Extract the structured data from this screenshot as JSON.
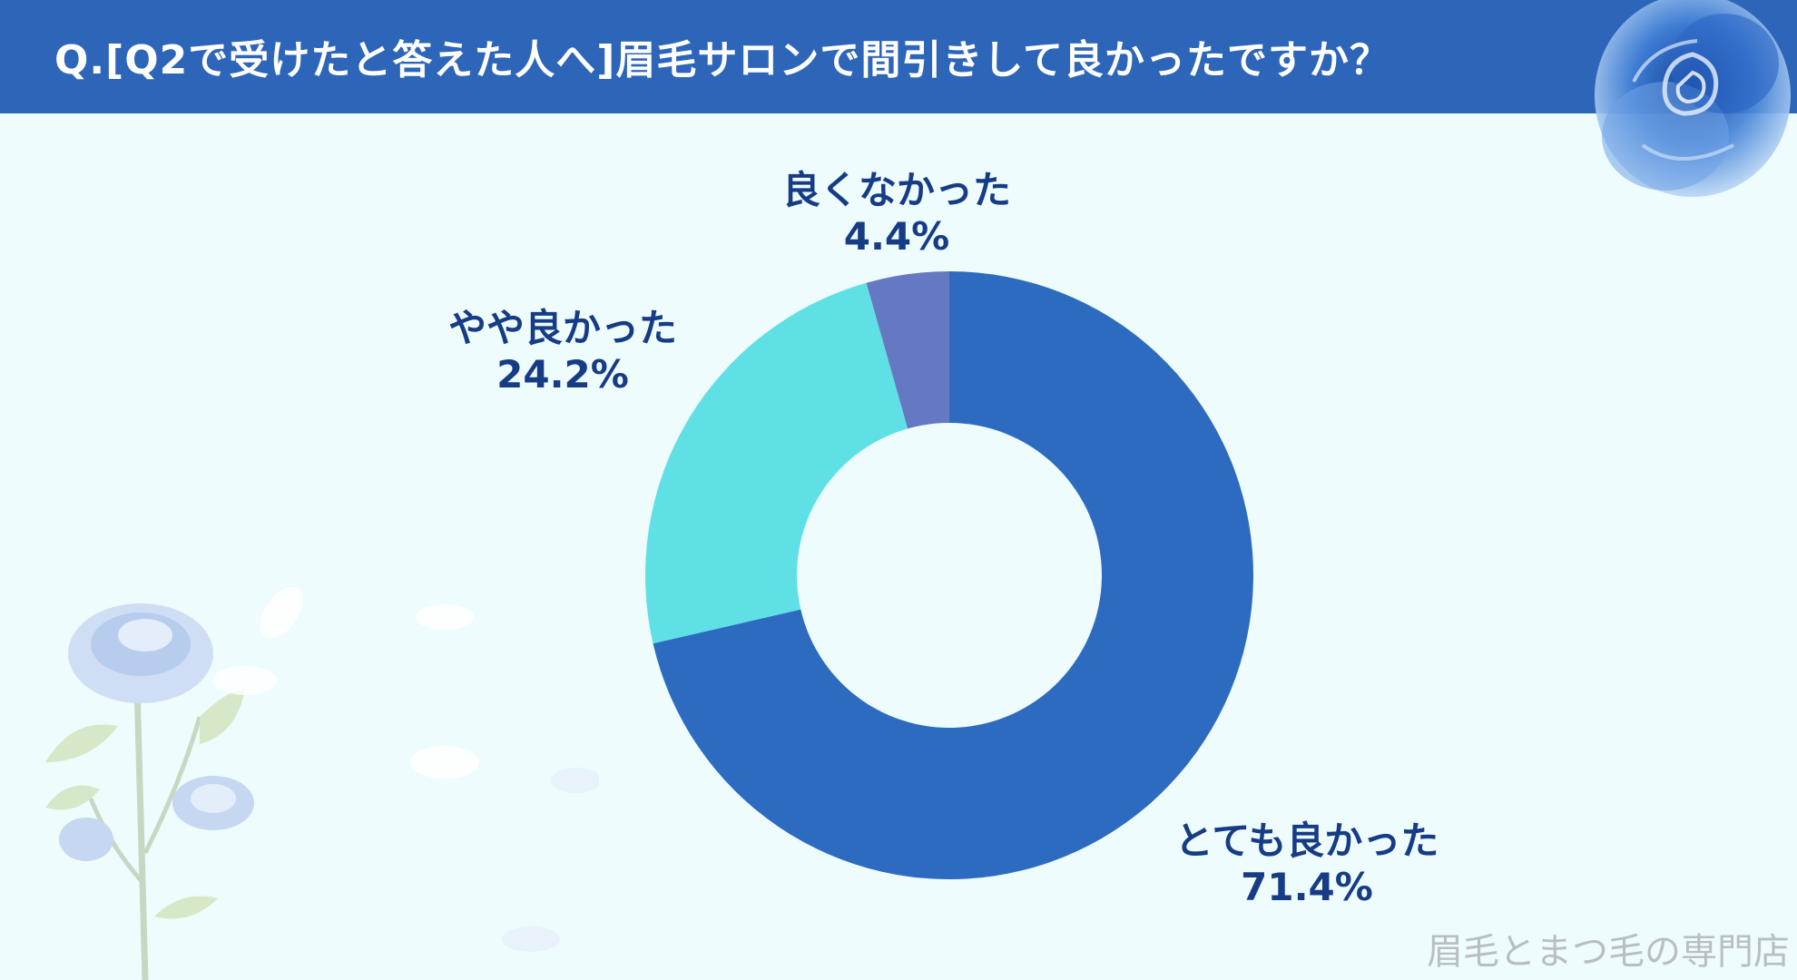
{
  "header": {
    "title": "Q.[Q2で受けたと答えた人へ]眉毛サロンで間引きして良かったですか？"
  },
  "chart_data": {
    "type": "pie",
    "donut": true,
    "categories": [
      "とても良かった",
      "やや良かった",
      "良くなかった"
    ],
    "values": [
      71.4,
      24.2,
      4.4
    ],
    "value_labels": [
      "71.4%",
      "24.2%",
      "4.4%"
    ],
    "colors": [
      "#2d6bc0",
      "#5ee0e5",
      "#6479c2"
    ],
    "legend": "none",
    "title": ""
  },
  "watermark": "眉毛とまつ毛の専門店",
  "colors": {
    "header_bg": "#2d65b9",
    "background": "#eefcfd",
    "label_text": "#163c86"
  }
}
